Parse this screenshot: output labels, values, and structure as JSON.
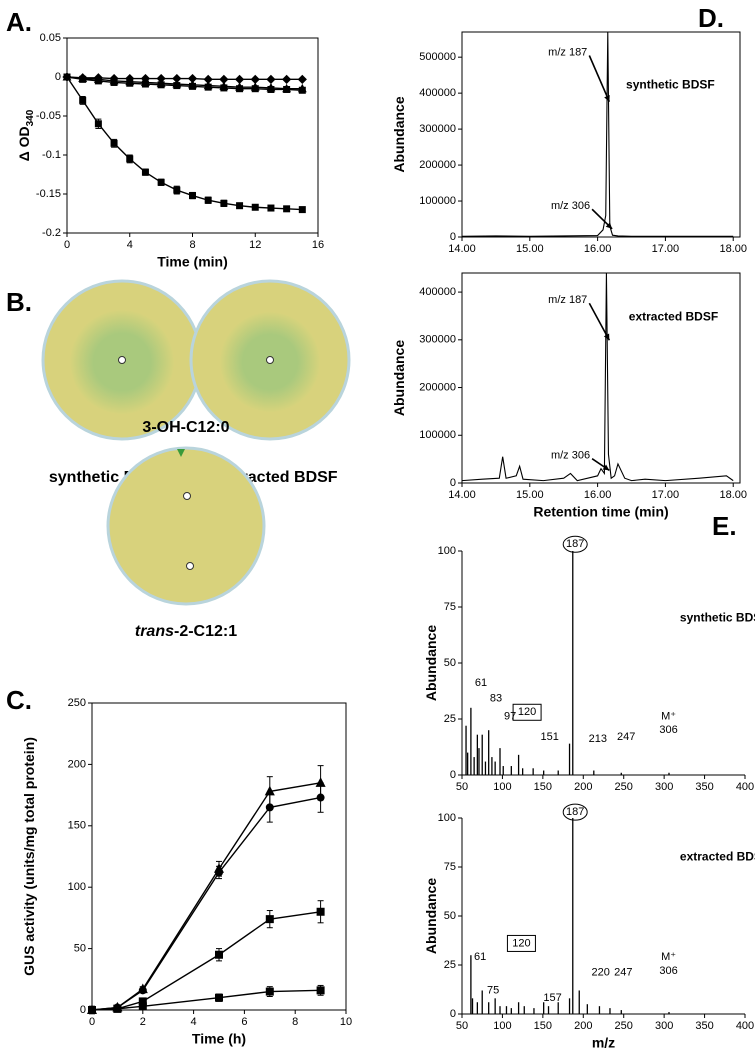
{
  "chart_data": [
    {
      "type": "line",
      "label": "A.",
      "ylabel": "Δ OD",
      "ylabel_subscript": "340",
      "xlabel": "Time (min)",
      "xlim": [
        0,
        16
      ],
      "xticks": [
        0,
        4,
        8,
        12,
        16
      ],
      "ylim": [
        -0.2,
        0.05
      ],
      "yticks": [
        0.05,
        0,
        -0.05,
        -0.1,
        -0.15,
        -0.2
      ],
      "x": [
        0,
        1,
        2,
        3,
        4,
        5,
        6,
        7,
        8,
        9,
        10,
        11,
        12,
        13,
        14,
        15
      ],
      "series": [
        {
          "marker": "diamond",
          "color": "#000000",
          "values": [
            0,
            -0.001,
            -0.001,
            -0.002,
            -0.002,
            -0.002,
            -0.002,
            -0.002,
            -0.002,
            -0.003,
            -0.003,
            -0.003,
            -0.003,
            -0.003,
            -0.003,
            -0.003
          ]
        },
        {
          "marker": "triangle",
          "color": "#000000",
          "values": [
            0,
            -0.002,
            -0.003,
            -0.005,
            -0.006,
            -0.007,
            -0.008,
            -0.009,
            -0.01,
            -0.011,
            -0.012,
            -0.013,
            -0.013,
            -0.014,
            -0.015,
            -0.015
          ]
        },
        {
          "marker": "square",
          "color": "#000000",
          "values": [
            0,
            -0.003,
            -0.005,
            -0.007,
            -0.008,
            -0.009,
            -0.01,
            -0.011,
            -0.012,
            -0.013,
            -0.014,
            -0.015,
            -0.015,
            -0.016,
            -0.016,
            -0.017
          ]
        },
        {
          "marker": "square",
          "color": "#000000",
          "values": [
            0,
            -0.03,
            -0.06,
            -0.085,
            -0.105,
            -0.122,
            -0.135,
            -0.145,
            -0.152,
            -0.158,
            -0.162,
            -0.165,
            -0.167,
            -0.168,
            -0.169,
            -0.17
          ],
          "errors": [
            0.002,
            0.005,
            0.006,
            0.005,
            0.005,
            0.004,
            0.004,
            0.005,
            0.004,
            0.004,
            0.004,
            0.003,
            0.003,
            0.003,
            0.002,
            0.002
          ]
        }
      ]
    },
    {
      "type": "line",
      "label": "C.",
      "ylabel": "GUS activity (units/mg total protein)",
      "xlabel": "Time (h)",
      "xlim": [
        0,
        10
      ],
      "xticks": [
        0,
        2,
        4,
        6,
        8,
        10
      ],
      "ylim": [
        0,
        250
      ],
      "yticks": [
        0,
        50,
        100,
        150,
        200,
        250
      ],
      "x": [
        0,
        1,
        2,
        5,
        7,
        9
      ],
      "series": [
        {
          "marker": "triangle",
          "color": "#000000",
          "values": [
            0,
            2,
            17,
            115,
            178,
            185
          ],
          "errors": [
            3,
            2,
            2,
            6,
            12,
            14
          ]
        },
        {
          "marker": "circle",
          "color": "#000000",
          "values": [
            0,
            2,
            16,
            112,
            165,
            173
          ],
          "errors": [
            3,
            2,
            2,
            5,
            12,
            12
          ]
        },
        {
          "marker": "square",
          "color": "#000000",
          "values": [
            0,
            1,
            7,
            45,
            74,
            80
          ],
          "errors": [
            2,
            2,
            2,
            5,
            7,
            9
          ]
        },
        {
          "marker": "square",
          "color": "#000000",
          "values": [
            0,
            1,
            3,
            10,
            15,
            16
          ],
          "errors": [
            2,
            2,
            2,
            3,
            4,
            4
          ]
        }
      ]
    },
    {
      "type": "line",
      "label": "D.",
      "ylabel": "Abundance",
      "xlim": [
        14,
        18.1
      ],
      "xticks": [
        {
          "value": 14,
          "label": "14.00"
        },
        {
          "value": 15,
          "label": "15.00"
        },
        {
          "value": 16,
          "label": "16.00"
        },
        {
          "value": 17,
          "label": "17.00"
        },
        {
          "value": 18,
          "label": "18.00"
        }
      ],
      "ylim": [
        0,
        570000
      ],
      "yticks": [
        0,
        100000,
        200000,
        300000,
        400000,
        500000
      ],
      "x": [
        14.0,
        14.5,
        15.0,
        15.5,
        16.0,
        16.08,
        16.12,
        16.15,
        16.18,
        16.22,
        16.3,
        16.5,
        17.0,
        17.5,
        18.0
      ],
      "series": [
        {
          "color": "#000000",
          "values": [
            2000,
            3000,
            2000,
            3000,
            4000,
            20000,
            60000,
            570000,
            30000,
            5000,
            3000,
            2000,
            2000,
            2000,
            2000
          ]
        }
      ],
      "annotations": [
        "m/z 187",
        "m/z 306",
        "synthetic BDSF"
      ]
    },
    {
      "type": "line",
      "ylabel": "Abundance",
      "xlabel": "Retention time (min)",
      "xlim": [
        14,
        18.1
      ],
      "xticks": [
        {
          "value": 14,
          "label": "14.00"
        },
        {
          "value": 15,
          "label": "15.00"
        },
        {
          "value": 16,
          "label": "16.00"
        },
        {
          "value": 17,
          "label": "17.00"
        },
        {
          "value": 18,
          "label": "18.00"
        }
      ],
      "ylim": [
        0,
        440000
      ],
      "yticks": [
        0,
        100000,
        200000,
        300000,
        400000
      ],
      "x": [
        14.0,
        14.3,
        14.55,
        14.6,
        14.65,
        14.8,
        14.85,
        14.9,
        15.2,
        15.5,
        15.6,
        15.7,
        16.0,
        16.05,
        16.1,
        16.13,
        16.16,
        16.2,
        16.25,
        16.3,
        16.4,
        16.5,
        16.7,
        17.0,
        17.5,
        17.9,
        18.0
      ],
      "series": [
        {
          "color": "#000000",
          "values": [
            5000,
            8000,
            10000,
            55000,
            10000,
            15000,
            35000,
            8000,
            5000,
            10000,
            20000,
            5000,
            15000,
            30000,
            20000,
            440000,
            60000,
            10000,
            15000,
            40000,
            10000,
            5000,
            8000,
            5000,
            10000,
            15000,
            5000
          ]
        }
      ],
      "annotations": [
        "m/z 187",
        "extracted BDSF",
        "m/z 306"
      ]
    },
    {
      "type": "stem",
      "label": "E.",
      "ylabel": "Abundance",
      "xlim": [
        50,
        400
      ],
      "xticks": [
        50,
        100,
        150,
        200,
        250,
        300,
        350,
        400
      ],
      "ylim": [
        0,
        100
      ],
      "yticks": [
        0,
        25,
        50,
        75,
        100
      ],
      "x": [
        55,
        57,
        61,
        65,
        69,
        71,
        75,
        79,
        83,
        87,
        91,
        97,
        101,
        111,
        120,
        125,
        138,
        151,
        169,
        183,
        187,
        213,
        247,
        306
      ],
      "series": [
        {
          "color": "#000000",
          "values": [
            22,
            10,
            30,
            8,
            18,
            12,
            18,
            6,
            20,
            8,
            6,
            12,
            4,
            4,
            9,
            3,
            3,
            2,
            2,
            14,
            100,
            2,
            1,
            1
          ]
        }
      ],
      "annotations": [
        "187",
        "61",
        "83",
        "97",
        "120",
        "151",
        "213",
        "247",
        "M⁺",
        "306",
        "synthetic BDSF"
      ]
    },
    {
      "type": "stem",
      "ylabel": "Abundance",
      "xlabel": "m/z",
      "xlim": [
        50,
        400
      ],
      "xticks": [
        50,
        100,
        150,
        200,
        250,
        300,
        350,
        400
      ],
      "ylim": [
        0,
        100
      ],
      "yticks": [
        0,
        25,
        50,
        75,
        100
      ],
      "x": [
        61,
        63,
        69,
        75,
        83,
        91,
        97,
        105,
        111,
        120,
        127,
        139,
        151,
        157,
        169,
        183,
        187,
        195,
        205,
        220,
        233,
        247,
        306
      ],
      "series": [
        {
          "color": "#000000",
          "values": [
            30,
            8,
            6,
            12,
            6,
            8,
            4,
            4,
            3,
            6,
            4,
            3,
            6,
            4,
            6,
            8,
            100,
            12,
            5,
            4,
            3,
            2,
            1
          ]
        }
      ],
      "annotations": [
        "187",
        "61",
        "75",
        "120",
        "157",
        "220",
        "247",
        "M⁺",
        "306",
        "extracted BDSF"
      ]
    }
  ],
  "plates": {
    "label": "B.",
    "left_label": "synthetic BDSF",
    "right_label": "extracted BDSF",
    "top_compound": "3-OH-C12:0",
    "bottom_compound": [
      "trans",
      "-2-C12:1"
    ]
  }
}
